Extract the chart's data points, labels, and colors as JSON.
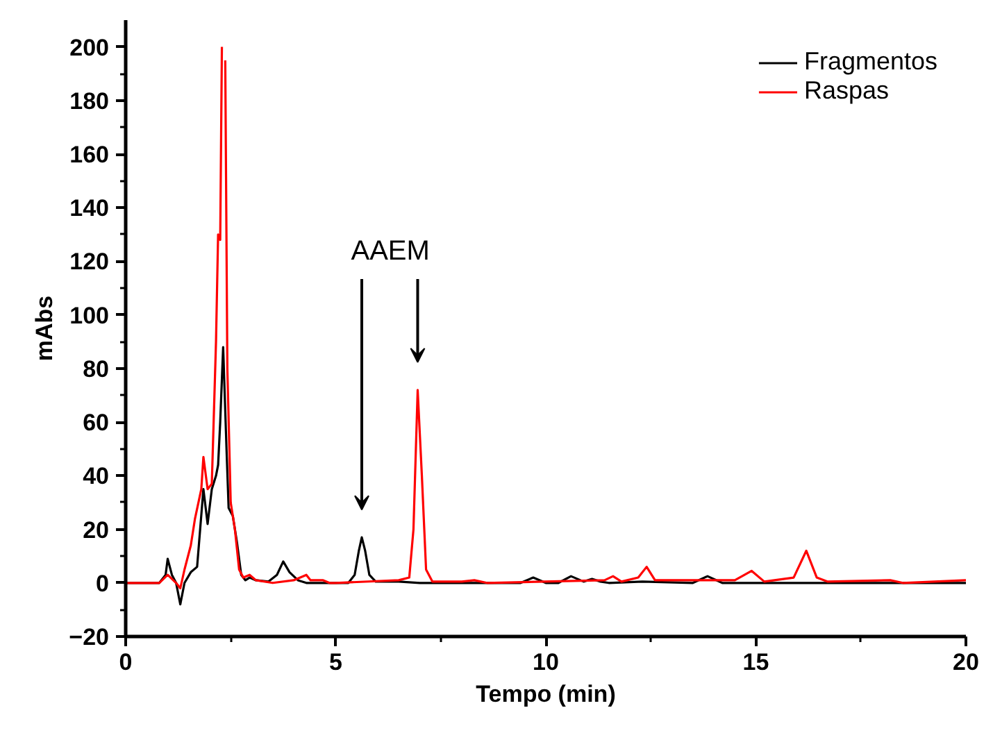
{
  "chart_data": {
    "type": "line",
    "xlabel": "Tempo (min)",
    "ylabel": "mAbs",
    "xlim": [
      0,
      20
    ],
    "ylim": [
      -20,
      210
    ],
    "xticks": [
      0,
      5,
      10,
      15,
      20
    ],
    "yticks": [
      -20,
      0,
      20,
      40,
      60,
      80,
      100,
      120,
      140,
      160,
      180,
      200
    ],
    "grid": false,
    "legend": "top right",
    "marker": "none",
    "line_style": "solid",
    "annotations": [
      "AAEM"
    ],
    "series": [
      {
        "name": "Fragmentos",
        "color": "#000000",
        "x": [
          0,
          0.8,
          0.95,
          1.0,
          1.1,
          1.2,
          1.3,
          1.4,
          1.55,
          1.7,
          1.85,
          1.95,
          2.05,
          2.15,
          2.2,
          2.25,
          2.32,
          2.4,
          2.45,
          2.55,
          2.65,
          2.75,
          2.85,
          2.95,
          3.1,
          3.4,
          3.6,
          3.75,
          3.9,
          4.1,
          4.3,
          5.3,
          5.45,
          5.55,
          5.62,
          5.7,
          5.8,
          5.95,
          6.5,
          7.0,
          9.4,
          9.7,
          10.0,
          10.3,
          10.6,
          10.9,
          11.1,
          11.3,
          11.5,
          12.3,
          13.5,
          13.85,
          14.2,
          20
        ],
        "values": [
          0,
          0,
          3,
          9,
          3,
          0,
          -8,
          0,
          4,
          6,
          35,
          22,
          35,
          40,
          44,
          60,
          88,
          50,
          28,
          25,
          15,
          3,
          1,
          2,
          1,
          0.5,
          3,
          8,
          4,
          1,
          0,
          0,
          3,
          12,
          17,
          12,
          3,
          0.5,
          0.5,
          0,
          0,
          2,
          0,
          0,
          2.5,
          0.5,
          1.5,
          0.5,
          0,
          0.5,
          0,
          2.5,
          0,
          0
        ]
      },
      {
        "name": "Raspas",
        "color": "#ff0000",
        "x": [
          0,
          0.8,
          1.0,
          1.2,
          1.3,
          1.4,
          1.55,
          1.65,
          1.8,
          1.85,
          1.95,
          2.05,
          2.15,
          2.2,
          2.25,
          2.29,
          2.33,
          2.37,
          2.42,
          2.5,
          2.6,
          2.7,
          2.8,
          2.95,
          3.1,
          3.5,
          4.0,
          4.3,
          4.4,
          4.7,
          4.85,
          5.0,
          6.5,
          6.75,
          6.85,
          6.95,
          7.05,
          7.15,
          7.3,
          8.0,
          8.3,
          8.6,
          11.4,
          11.6,
          11.8,
          12.2,
          12.4,
          12.6,
          14.5,
          14.9,
          15.2,
          15.9,
          16.2,
          16.45,
          16.7,
          18.2,
          18.5,
          20
        ],
        "values": [
          0,
          0,
          3,
          0,
          -2,
          5,
          14,
          24,
          35,
          47,
          35,
          37,
          90,
          130,
          128,
          200,
          null,
          195,
          80,
          30,
          20,
          5,
          2,
          3,
          1,
          0,
          1,
          3,
          1,
          1,
          0,
          0,
          1,
          2,
          20,
          72,
          40,
          5,
          0.5,
          0.5,
          1,
          0,
          1,
          2.5,
          0.5,
          2,
          6,
          1,
          1,
          4.5,
          0.5,
          2,
          12,
          2,
          0.5,
          1,
          0,
          1
        ]
      }
    ]
  }
}
